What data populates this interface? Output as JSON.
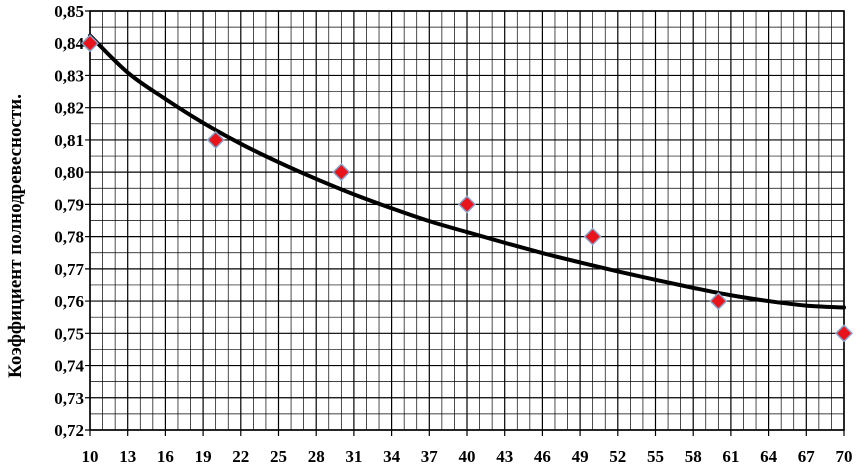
{
  "chart_data": {
    "type": "scatter",
    "title": "",
    "xlabel": "",
    "ylabel": "Коэффициент полнодревесности.",
    "xlim": [
      10,
      70
    ],
    "ylim": [
      0.72,
      0.85
    ],
    "x_ticks": [
      "10",
      "13",
      "16",
      "19",
      "22",
      "25",
      "28",
      "31",
      "34",
      "37",
      "40",
      "43",
      "46",
      "49",
      "52",
      "55",
      "58",
      "61",
      "64",
      "67",
      "70"
    ],
    "y_ticks": [
      "0,72",
      "0,73",
      "0,74",
      "0,75",
      "0,76",
      "0,77",
      "0,78",
      "0,79",
      "0,80",
      "0,81",
      "0,82",
      "0,83",
      "0,84",
      "0,85"
    ],
    "grid": true,
    "series": [
      {
        "kind": "points",
        "marker": "diamond",
        "color": "#e8141b",
        "edge_color": "#8aa0c8",
        "x": [
          10,
          20,
          30,
          40,
          50,
          60,
          70
        ],
        "y": [
          0.84,
          0.81,
          0.8,
          0.79,
          0.78,
          0.76,
          0.75
        ]
      },
      {
        "kind": "trend",
        "color": "#000000",
        "x": [
          10,
          13,
          16,
          19,
          22,
          25,
          28,
          31,
          34,
          37,
          40,
          43,
          46,
          49,
          52,
          55,
          58,
          61,
          64,
          67,
          70
        ],
        "y": [
          0.8424,
          0.8309,
          0.8227,
          0.8153,
          0.8088,
          0.8031,
          0.7979,
          0.7931,
          0.7888,
          0.7848,
          0.7814,
          0.7781,
          0.7749,
          0.772,
          0.7692,
          0.7666,
          0.7641,
          0.7618,
          0.76,
          0.7586,
          0.758
        ]
      }
    ]
  }
}
